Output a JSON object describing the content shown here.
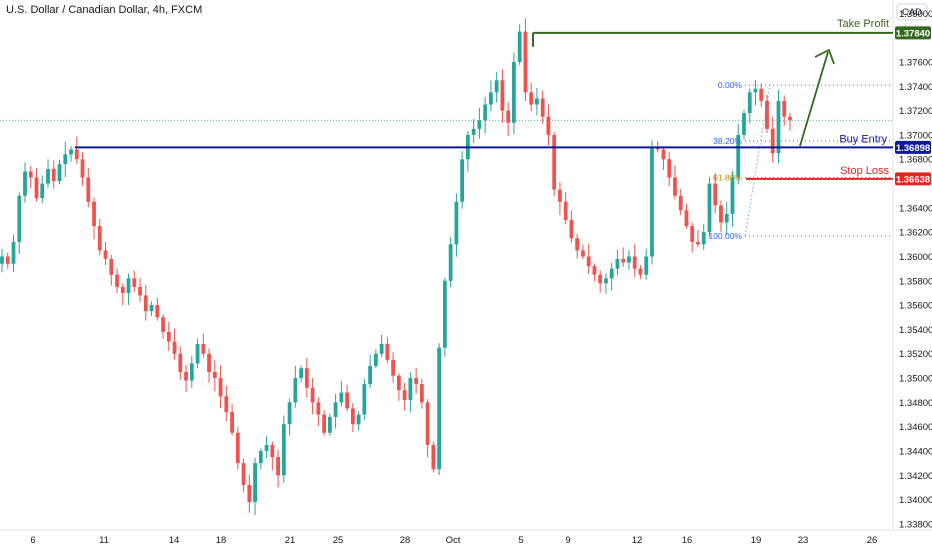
{
  "chart_data": {
    "type": "candlestick",
    "title": "U.S. Dollar / Canadian Dollar, 4h, FXCM",
    "currency": "CAD",
    "y_ticks": [
      1.38,
      1.376,
      1.374,
      1.372,
      1.37,
      1.368,
      1.364,
      1.362,
      1.36,
      1.358,
      1.356,
      1.354,
      1.352,
      1.35,
      1.348,
      1.346,
      1.344,
      1.342,
      1.34,
      1.338
    ],
    "ylim": [
      1.3375,
      1.3811
    ],
    "x_ticks": [
      "6",
      "11",
      "14",
      "18",
      "21",
      "25",
      "28",
      "Oct",
      "5",
      "9",
      "12",
      "16",
      "19",
      "23",
      "26"
    ],
    "price_markers": {
      "take_profit": {
        "label": "Take Profit",
        "value": "1.37840"
      },
      "buy_entry": {
        "label": "Buy Entry",
        "value": "1.36898"
      },
      "stop_loss": {
        "label": "Stop Loss",
        "value": "1.36638"
      }
    },
    "fibonacci": [
      {
        "label": "0.00%",
        "value": 1.3741
      },
      {
        "label": "38.20%",
        "value": 1.3695
      },
      {
        "label": "61.80%",
        "value": 1.3665
      },
      {
        "label": "100.00%",
        "value": 1.3617
      }
    ],
    "last_price": 1.3712,
    "close_path": [
      1.36,
      1.3594,
      1.3612,
      1.365,
      1.367,
      1.3665,
      1.3648,
      1.366,
      1.3672,
      1.3662,
      1.3676,
      1.3684,
      1.3688,
      1.368,
      1.3665,
      1.3645,
      1.3625,
      1.3605,
      1.3598,
      1.3585,
      1.3575,
      1.357,
      1.3582,
      1.3575,
      1.3568,
      1.3555,
      1.356,
      1.355,
      1.3538,
      1.353,
      1.352,
      1.3505,
      1.3498,
      1.3512,
      1.3528,
      1.352,
      1.3505,
      1.35,
      1.3485,
      1.3472,
      1.3455,
      1.343,
      1.3412,
      1.3398,
      1.343,
      1.344,
      1.3445,
      1.3435,
      1.342,
      1.3462,
      1.348,
      1.35,
      1.3508,
      1.3492,
      1.348,
      1.347,
      1.3455,
      1.3468,
      1.348,
      1.3488,
      1.3475,
      1.3462,
      1.347,
      1.3495,
      1.351,
      1.352,
      1.3528,
      1.3515,
      1.3502,
      1.349,
      1.3482,
      1.35,
      1.3495,
      1.348,
      1.3445,
      1.3425,
      1.3525,
      1.358,
      1.361,
      1.3645,
      1.368,
      1.37,
      1.3705,
      1.3712,
      1.3725,
      1.3735,
      1.3745,
      1.372,
      1.371,
      1.376,
      1.3785,
      1.3735,
      1.3725,
      1.373,
      1.3715,
      1.37,
      1.3655,
      1.3645,
      1.363,
      1.3615,
      1.3605,
      1.36,
      1.3592,
      1.3585,
      1.3578,
      1.3582,
      1.359,
      1.3598,
      1.3595,
      1.36,
      1.359,
      1.3585,
      1.36,
      1.369,
      1.3688,
      1.368,
      1.3665,
      1.365,
      1.3638,
      1.3625,
      1.3612,
      1.361,
      1.362,
      1.366,
      1.3642,
      1.3628,
      1.3635,
      1.3665,
      1.37,
      1.3718,
      1.3735,
      1.3738,
      1.3728,
      1.3705,
      1.3685,
      1.3728,
      1.3715,
      1.3712
    ]
  }
}
